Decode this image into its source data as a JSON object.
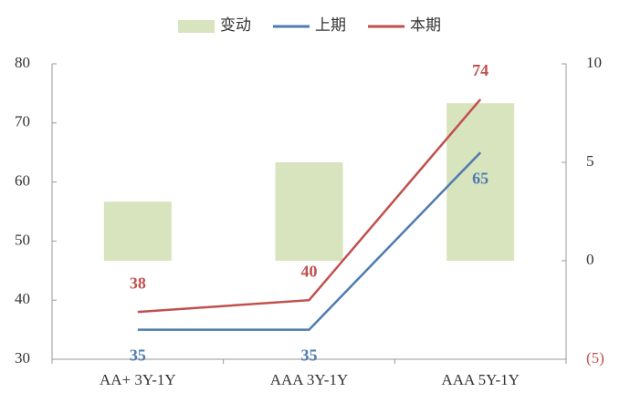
{
  "chart_data": {
    "type": "bar-line",
    "categories": [
      "AA+ 3Y-1Y",
      "AAA 3Y-1Y",
      "AAA 5Y-1Y"
    ],
    "series": [
      {
        "name": "变动",
        "color": "#d7e4bd",
        "type": "bar",
        "axis": "y2",
        "values": [
          3,
          5,
          8
        ]
      },
      {
        "name": "上期",
        "color": "#4f7bb0",
        "type": "line",
        "values": [
          35,
          35,
          65
        ]
      },
      {
        "name": "本期",
        "color": "#c0504d",
        "type": "line",
        "values": [
          38,
          40,
          74
        ]
      }
    ],
    "ylim": [
      30,
      80
    ],
    "yticks": [
      30,
      40,
      50,
      60,
      70,
      80
    ],
    "y2lim": [
      -5,
      10
    ],
    "y2ticks": [
      {
        "value": -5,
        "label": "(5)"
      },
      0,
      5,
      10
    ]
  }
}
